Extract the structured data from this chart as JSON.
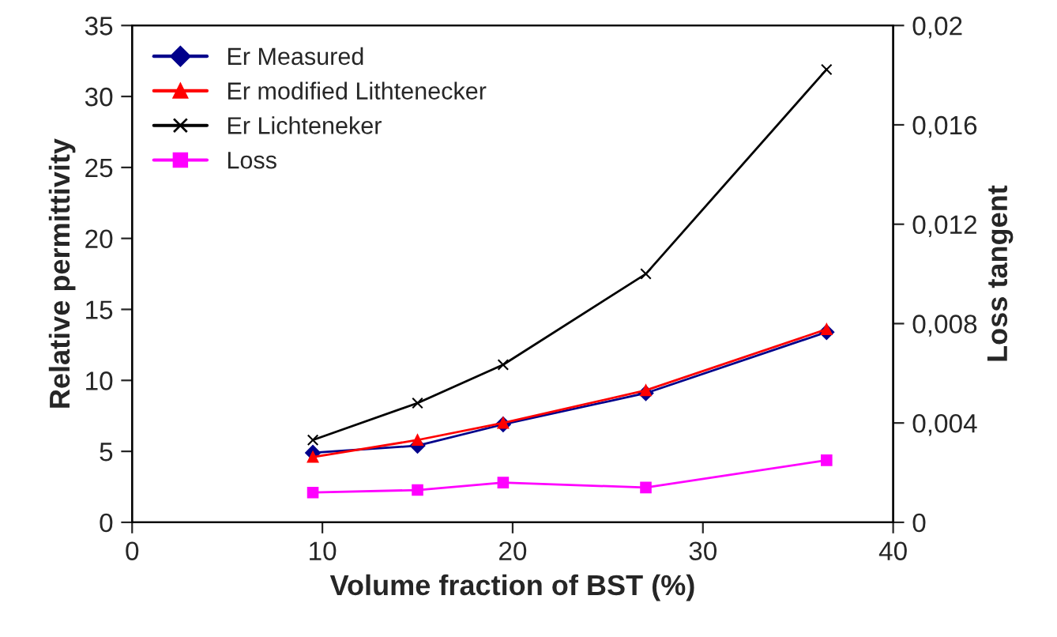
{
  "chart_data": {
    "type": "line",
    "xlabel": "Volume fraction of BST (%)",
    "ylabel": "Relative permittivity",
    "y2label": "Loss tangent",
    "x": [
      9.5,
      15,
      19.5,
      27,
      36.5
    ],
    "series": [
      {
        "name": "Er Measured",
        "color": "#00008b",
        "marker": "diamond",
        "values": [
          4.9,
          5.4,
          6.9,
          9.1,
          13.4
        ]
      },
      {
        "name": "Er modified Lithtenecker",
        "color": "#ff0000",
        "marker": "triangle",
        "values": [
          4.6,
          5.8,
          7.0,
          9.3,
          13.6
        ]
      },
      {
        "name": "Er Lichteneker",
        "color": "#000000",
        "marker": "cross",
        "values": [
          5.8,
          8.4,
          11.1,
          17.5,
          31.9
        ]
      },
      {
        "name": "Loss",
        "color": "#ff00ff",
        "marker": "square",
        "axis": "y2",
        "values": [
          0.0012,
          0.0013,
          0.0016,
          0.0014,
          0.0025
        ]
      }
    ],
    "xlim": [
      0,
      40
    ],
    "xticks": [
      0,
      10,
      20,
      30,
      40
    ],
    "ylim": [
      0,
      35
    ],
    "yticks": [
      0,
      5,
      10,
      15,
      20,
      25,
      30,
      35
    ],
    "y2lim": [
      0,
      0.02
    ],
    "y2ticks": [
      0,
      {
        "value": 0.004,
        "label": "0,004"
      },
      {
        "value": 0.008,
        "label": "0,008"
      },
      {
        "value": 0.012,
        "label": "0,012"
      },
      {
        "value": 0.016,
        "label": "0,016"
      },
      {
        "value": 0.02,
        "label": "0,02"
      }
    ],
    "grid": false,
    "legend": "top left",
    "line_style": "solid"
  }
}
